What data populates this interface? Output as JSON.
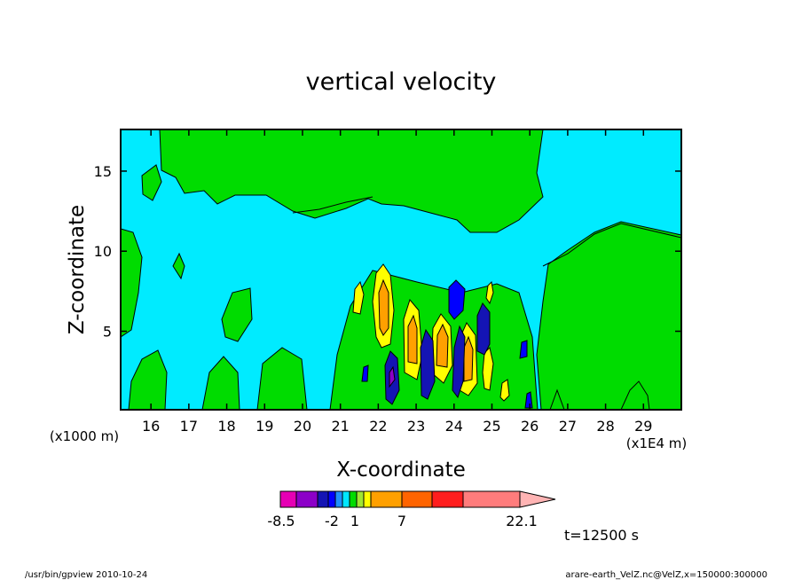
{
  "chart_data": {
    "type": "heatmap",
    "title": "vertical velocity",
    "xlabel": "X-coordinate",
    "ylabel": "Z-coordinate",
    "x_unit_left": "(x1000 m)",
    "x_unit_right": "(x1E4 m)",
    "xlim": [
      15.2,
      30.0
    ],
    "ylim": [
      0.1,
      17.6
    ],
    "x_ticks": [
      "16",
      "17",
      "18",
      "19",
      "20",
      "21",
      "22",
      "23",
      "24",
      "25",
      "26",
      "27",
      "28",
      "29"
    ],
    "y_ticks": [
      "5",
      "10",
      "15"
    ],
    "colorbar": {
      "labels": [
        "-8.5",
        "-2",
        "1",
        "7",
        "22.1"
      ],
      "colors": [
        "#e600b4",
        "#8c00c8",
        "#1414b4",
        "#0000ff",
        "#1e90ff",
        "#00e6ff",
        "#00dc00",
        "#a0e632",
        "#ffff00",
        "#ffa000",
        "#ff6400",
        "#ff1e1e",
        "#ff7c7c",
        "#ffb4b4"
      ]
    },
    "colors": {
      "background_weak": "#00ebff",
      "weak_updraft": "#00dc00"
    },
    "regions": [
      {
        "name": "upper-updraft-band",
        "sign": "up",
        "level": 1,
        "x": [
          18.0,
          26.5
        ],
        "y": [
          12.0,
          17.6
        ]
      },
      {
        "name": "right-updraft-region",
        "sign": "up",
        "level": 1,
        "x": [
          26.2,
          30.0
        ],
        "y": [
          0.1,
          11.2
        ]
      },
      {
        "name": "wave-core-1",
        "sign": "up",
        "level": 4,
        "x": [
          21.9,
          22.3
        ],
        "y": [
          3.5,
          9.2
        ]
      },
      {
        "name": "wave-core-2",
        "sign": "up",
        "level": 4,
        "x": [
          22.6,
          23.0
        ],
        "y": [
          1.5,
          6.5
        ]
      },
      {
        "name": "wave-core-3",
        "sign": "up",
        "level": 4,
        "x": [
          23.4,
          23.9
        ],
        "y": [
          1.5,
          6.0
        ]
      },
      {
        "name": "wave-core-4",
        "sign": "up",
        "level": 4,
        "x": [
          24.1,
          24.6
        ],
        "y": [
          0.8,
          5.5
        ]
      },
      {
        "name": "downdraft-core-1",
        "sign": "down",
        "level": 3,
        "x": [
          22.1,
          22.5
        ],
        "y": [
          0.5,
          4.0
        ]
      },
      {
        "name": "downdraft-core-2",
        "sign": "down",
        "level": 3,
        "x": [
          23.0,
          23.4
        ],
        "y": [
          0.8,
          5.0
        ]
      },
      {
        "name": "downdraft-core-3",
        "sign": "down",
        "level": 3,
        "x": [
          23.8,
          24.2
        ],
        "y": [
          0.8,
          8.0
        ]
      }
    ]
  },
  "time_label": "t=12500 s",
  "footer": {
    "left": "/usr/bin/gpview  2010-10-24",
    "right": "arare-earth_VelZ.nc@VelZ,x=150000:300000"
  }
}
